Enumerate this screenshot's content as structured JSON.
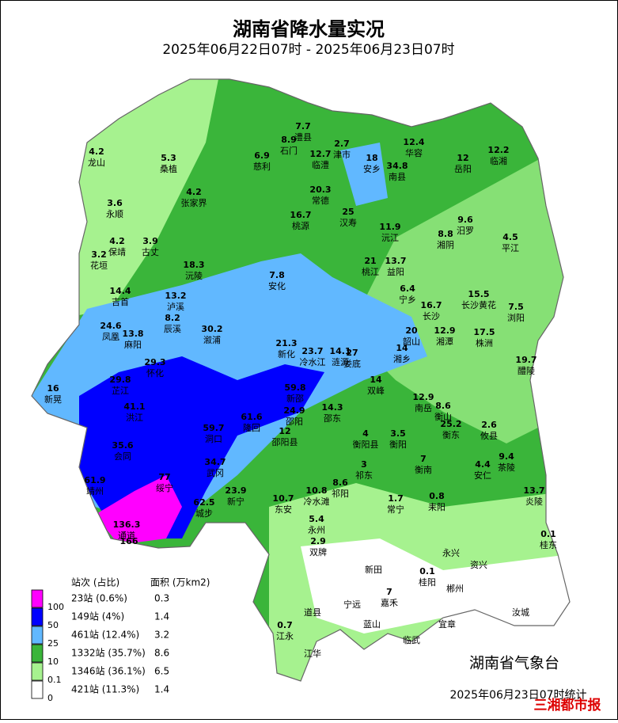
{
  "header": {
    "title": "湖南省降水量实况",
    "subtitle": "2025年06月22日07时 - 2025年06月23日07时"
  },
  "stations": [
    {
      "name": "龙山",
      "value": 4.2
    },
    {
      "name": "桑植",
      "value": 5.3
    },
    {
      "name": "慈利",
      "value": 6.9
    },
    {
      "name": "石门",
      "value": 8.9
    },
    {
      "name": "澧县",
      "value": 7.7
    },
    {
      "name": "临澧",
      "value": 12.7
    },
    {
      "name": "津市",
      "value": 2.7
    },
    {
      "name": "安乡",
      "value": 18
    },
    {
      "name": "南县",
      "value": 34.8
    },
    {
      "name": "华容",
      "value": 12.4
    },
    {
      "name": "岳阳",
      "value": 12
    },
    {
      "name": "临湘",
      "value": 12.2
    },
    {
      "name": "张家界",
      "value": 4.2
    },
    {
      "name": "常德",
      "value": 20.3
    },
    {
      "name": "汉寿",
      "value": 25
    },
    {
      "name": "永顺",
      "value": 3.6
    },
    {
      "name": "桃源",
      "value": 16.7
    },
    {
      "name": "沅江",
      "value": 11.9
    },
    {
      "name": "汨罗",
      "value": 9.6
    },
    {
      "name": "湘阴",
      "value": 8.8
    },
    {
      "name": "平江",
      "value": 4.5
    },
    {
      "name": "保靖",
      "value": 4.2
    },
    {
      "name": "古丈",
      "value": 3.9
    },
    {
      "name": "花垣",
      "value": 3.2
    },
    {
      "name": "沅陵",
      "value": 18.3
    },
    {
      "name": "安化",
      "value": 7.8
    },
    {
      "name": "桃江",
      "value": 21
    },
    {
      "name": "益阳",
      "value": 13.7
    },
    {
      "name": "吉首",
      "value": 14.4
    },
    {
      "name": "泸溪",
      "value": 13.2
    },
    {
      "name": "宁乡",
      "value": 6.4
    },
    {
      "name": "长沙",
      "value": 16.7
    },
    {
      "name": "长沙黄花",
      "value": 15.5
    },
    {
      "name": "浏阳",
      "value": 7.5
    },
    {
      "name": "凤凰",
      "value": 24.6
    },
    {
      "name": "麻阳",
      "value": 13.8
    },
    {
      "name": "辰溪",
      "value": 8.2
    },
    {
      "name": "溆浦",
      "value": 30.2
    },
    {
      "name": "新化",
      "value": 21.3
    },
    {
      "name": "冷水江",
      "value": 23.7
    },
    {
      "name": "涟源",
      "value": 14.1
    },
    {
      "name": "娄底",
      "value": 27
    },
    {
      "name": "韶山",
      "value": 20
    },
    {
      "name": "湘潭",
      "value": 12.9
    },
    {
      "name": "株洲",
      "value": 17.5
    },
    {
      "name": "湘乡",
      "value": 14
    },
    {
      "name": "醴陵",
      "value": 19.7
    },
    {
      "name": "怀化",
      "value": 29.3
    },
    {
      "name": "芷江",
      "value": 29.8
    },
    {
      "name": "新晃",
      "value": 16
    },
    {
      "name": "洪江",
      "value": 41.1
    },
    {
      "name": "双峰",
      "value": 14
    },
    {
      "name": "新邵",
      "value": 59.8
    },
    {
      "name": "邵阳",
      "value": 24.9
    },
    {
      "name": "隆回",
      "value": 61.6
    },
    {
      "name": "洞口",
      "value": 59.7
    },
    {
      "name": "邵东",
      "value": 14.3
    },
    {
      "name": "南岳",
      "value": 12.9
    },
    {
      "name": "衡山",
      "value": 8.6
    },
    {
      "name": "会同",
      "value": 35.6
    },
    {
      "name": "邵阳县",
      "value": 12
    },
    {
      "name": "武冈",
      "value": 34.7
    },
    {
      "name": "衡阳县",
      "value": 4
    },
    {
      "name": "衡阳",
      "value": 3.5
    },
    {
      "name": "衡东",
      "value": 25.2
    },
    {
      "name": "攸县",
      "value": 2.6
    },
    {
      "name": "靖州",
      "value": 61.9
    },
    {
      "name": "绥宁",
      "value": 77
    },
    {
      "name": "城步",
      "value": 62.5
    },
    {
      "name": "新宁",
      "value": 23.9
    },
    {
      "name": "东安",
      "value": 10.7
    },
    {
      "name": "冷水滩",
      "value": 10.8
    },
    {
      "name": "祁阳",
      "value": 8.6
    },
    {
      "name": "祁东",
      "value": 3
    },
    {
      "name": "衡南",
      "value": 7
    },
    {
      "name": "安仁",
      "value": 4.4
    },
    {
      "name": "茶陵",
      "value": 9.4
    },
    {
      "name": "通道",
      "value": 136.3
    },
    {
      "name": null,
      "value": 166
    },
    {
      "name": "永州",
      "value": 5.4
    },
    {
      "name": "常宁",
      "value": 1.7
    },
    {
      "name": "耒阳",
      "value": 0.8
    },
    {
      "name": "炎陵",
      "value": 13.7
    },
    {
      "name": "双牌",
      "value": 2.9
    },
    {
      "name": "桂东",
      "value": 0.1
    },
    {
      "name": "永兴",
      "value": null
    },
    {
      "name": "资兴",
      "value": null
    },
    {
      "name": "新田",
      "value": null
    },
    {
      "name": "桂阳",
      "value": 0.1
    },
    {
      "name": "郴州",
      "value": null
    },
    {
      "name": "宁远",
      "value": null
    },
    {
      "name": "嘉禾",
      "value": 7
    },
    {
      "name": "道县",
      "value": null
    },
    {
      "name": "汝城",
      "value": null
    },
    {
      "name": "蓝山",
      "value": null
    },
    {
      "name": "宜章",
      "value": null
    },
    {
      "name": "临武",
      "value": null
    },
    {
      "name": "江永",
      "value": 0.7
    },
    {
      "name": "江华",
      "value": null
    }
  ],
  "legend": {
    "header_count": "站次 (占比)",
    "header_area": "面积 (万km2)",
    "thresholds": [
      100,
      50,
      25,
      10,
      0.1,
      0
    ],
    "rows": [
      {
        "count": "23站 (0.6%)",
        "area": 0.3,
        "color": "#ff00ff"
      },
      {
        "count": "149站 (4%)",
        "area": 1.4,
        "color": "#0000ff"
      },
      {
        "count": "461站 (12.4%)",
        "area": 3.2,
        "color": "#61b8ff"
      },
      {
        "count": "1332站 (35.7%)",
        "area": 8.6,
        "color": "#3ab53a"
      },
      {
        "count": "1346站 (36.1%)",
        "area": 6.5,
        "color": "#a6f28f"
      },
      {
        "count": "421站 (11.3%)",
        "area": 1.4,
        "color": "#ffffff"
      }
    ]
  },
  "footer": {
    "agency": "湖南省气象台",
    "stamp": "2025年06月23日07时统计",
    "watermark": "三湘都市报"
  }
}
